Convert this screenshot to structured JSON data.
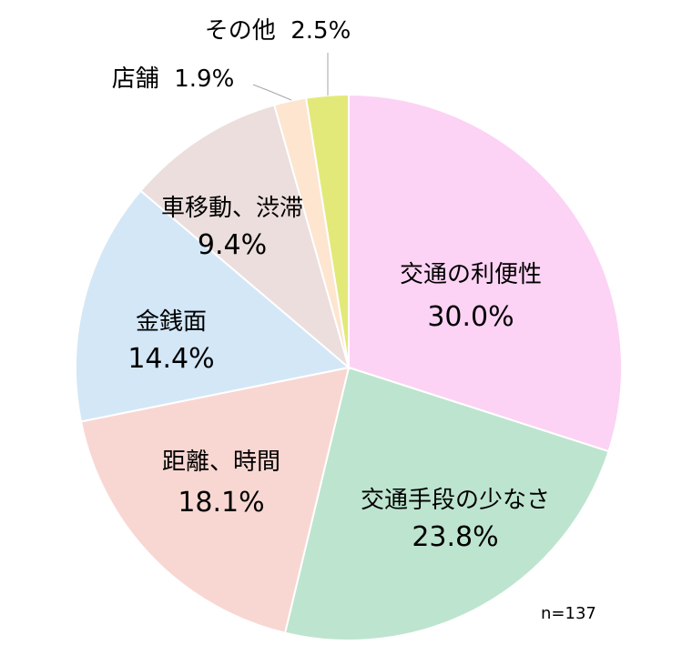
{
  "chart_data": {
    "type": "pie",
    "sample_note": "n=137",
    "slices": [
      {
        "label": "交通の利便性",
        "value": 30.0,
        "value_label": "30.0%",
        "color": "#fcd3f4"
      },
      {
        "label": "交通手段の少なさ",
        "value": 23.8,
        "value_label": "23.8%",
        "color": "#bde4cf"
      },
      {
        "label": "距離、時間",
        "value": 18.1,
        "value_label": "18.1%",
        "color": "#f8d7d2"
      },
      {
        "label": "金銭面",
        "value": 14.4,
        "value_label": "14.4%",
        "color": "#d3e7f7"
      },
      {
        "label": "車移動、渋滞",
        "value": 9.4,
        "value_label": "9.4%",
        "color": "#ebdedd"
      },
      {
        "label": "店舗",
        "value": 1.9,
        "value_label": "1.9%",
        "color": "#fde5d0"
      },
      {
        "label": "その他",
        "value": 2.5,
        "value_label": "2.5%",
        "color": "#e3e978"
      }
    ]
  }
}
